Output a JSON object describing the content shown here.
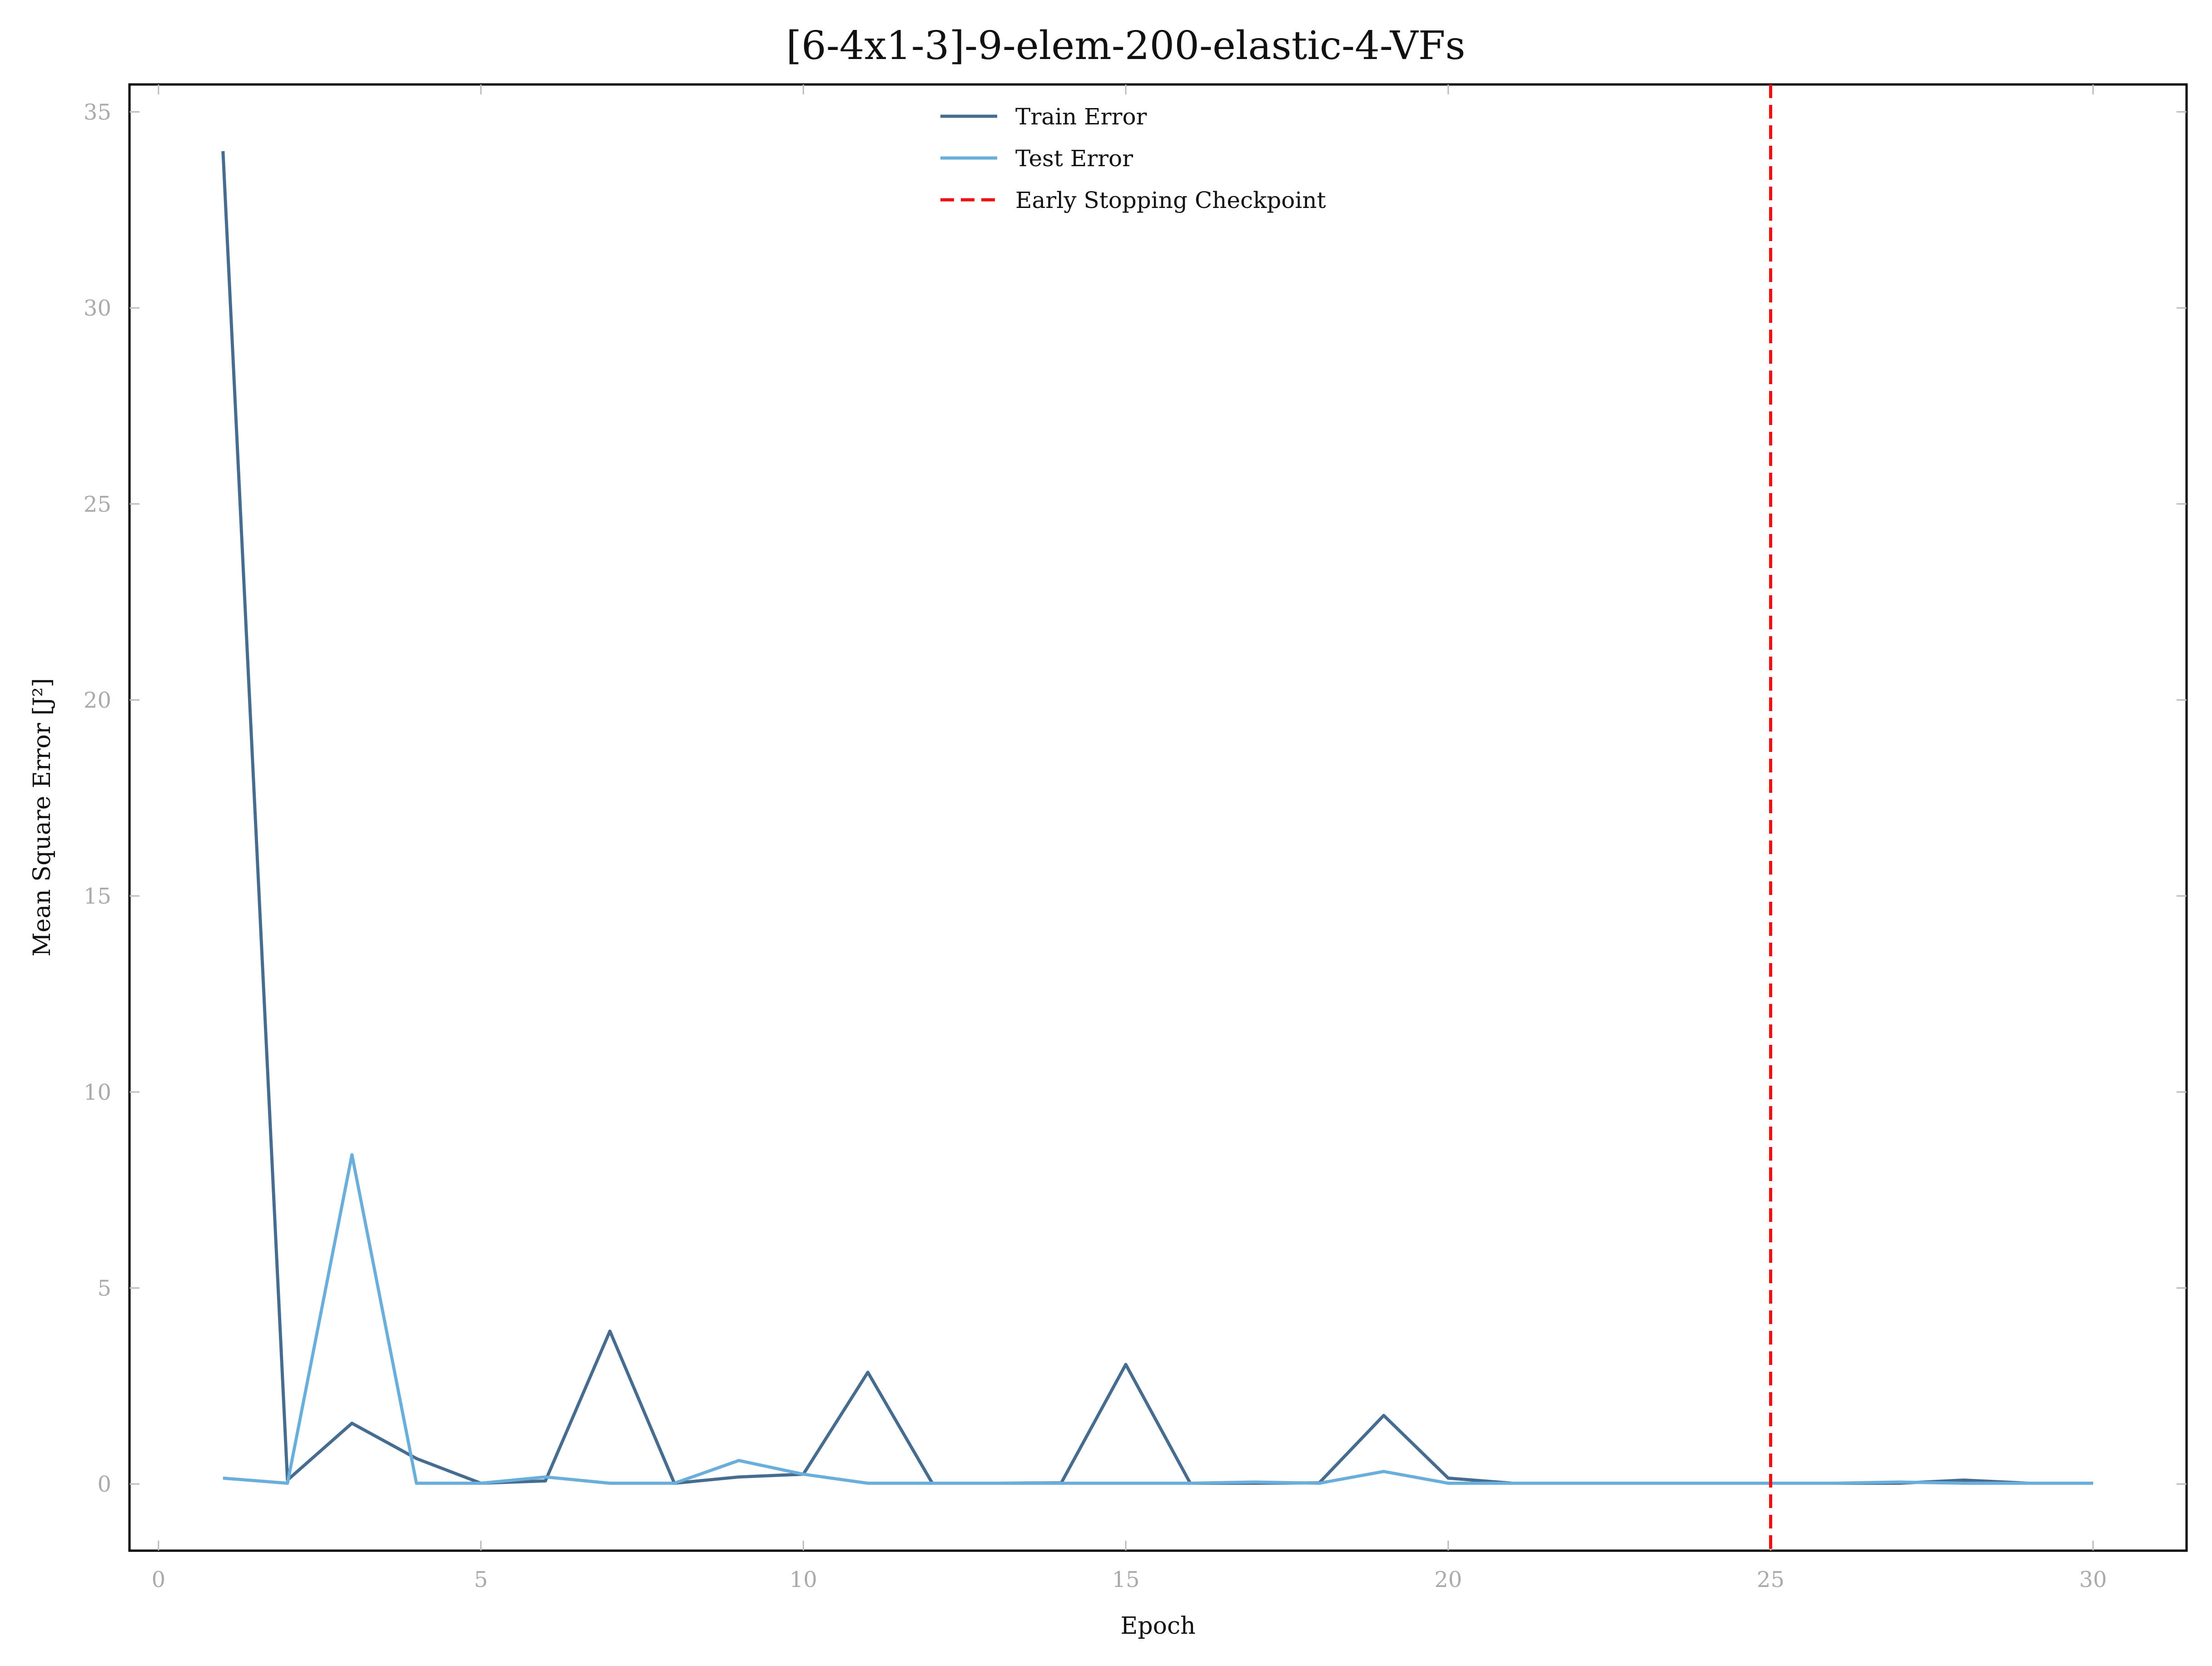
{
  "chart_data": {
    "type": "line",
    "title": "[6-4x1-3]-9-elem-200-elastic-4-VFs",
    "xlabel": "Epoch",
    "ylabel": "Mean Square Error [J²]",
    "xlim": [
      -0.45,
      31.45
    ],
    "ylim": [
      -1.7,
      35.7
    ],
    "xticks": [
      0,
      5,
      10,
      15,
      20,
      25,
      30
    ],
    "yticks": [
      0,
      5,
      10,
      15,
      20,
      25,
      30,
      35
    ],
    "grid": false,
    "legend_position": "top-center",
    "x": [
      1,
      2,
      3,
      4,
      5,
      6,
      7,
      8,
      9,
      10,
      11,
      12,
      13,
      14,
      15,
      16,
      17,
      18,
      19,
      20,
      21,
      22,
      23,
      24,
      25,
      26,
      27,
      28,
      29,
      30
    ],
    "series": [
      {
        "name": "Train Error",
        "color": "#466c8f",
        "values": [
          34.0,
          0.1,
          1.55,
          0.65,
          0.02,
          0.08,
          3.9,
          0.02,
          0.18,
          0.25,
          2.85,
          0.02,
          0.02,
          0.03,
          3.05,
          0.02,
          0.02,
          0.03,
          1.75,
          0.15,
          0.02,
          0.02,
          0.02,
          0.02,
          0.02,
          0.02,
          0.02,
          0.1,
          0.02,
          0.02
        ]
      },
      {
        "name": "Test Error",
        "color": "#6aaedb",
        "values": [
          0.15,
          0.02,
          8.4,
          0.02,
          0.02,
          0.18,
          0.02,
          0.02,
          0.6,
          0.25,
          0.02,
          0.02,
          0.02,
          0.02,
          0.02,
          0.02,
          0.05,
          0.02,
          0.32,
          0.02,
          0.02,
          0.02,
          0.02,
          0.02,
          0.02,
          0.02,
          0.05,
          0.02,
          0.02,
          0.02
        ]
      }
    ],
    "vlines": [
      {
        "name": "Early Stopping Checkpoint",
        "x": 25,
        "color": "#ee1111",
        "style": "dashed"
      }
    ]
  }
}
